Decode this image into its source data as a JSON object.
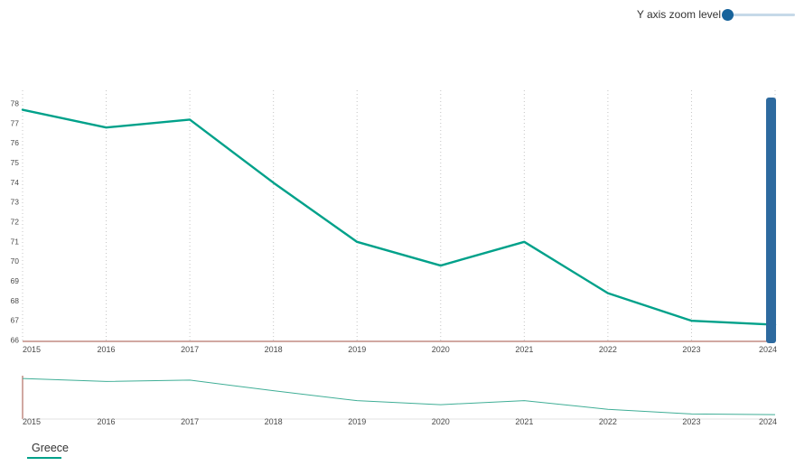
{
  "controls": {
    "y_zoom_label": "Y axis zoom level"
  },
  "legend": {
    "items": [
      {
        "label": "Greece",
        "color": "#00a18a"
      }
    ]
  },
  "chart_data": {
    "type": "line",
    "title": "",
    "xlabel": "",
    "ylabel": "",
    "x": [
      2015,
      2016,
      2017,
      2018,
      2019,
      2020,
      2021,
      2022,
      2023,
      2024
    ],
    "series": [
      {
        "name": "Greece",
        "values": [
          77.7,
          76.8,
          77.2,
          74.0,
          71.0,
          69.8,
          71.0,
          68.4,
          67.0,
          66.8
        ]
      }
    ],
    "ylim": [
      66,
      78
    ],
    "yticks": [
      66,
      67,
      68,
      69,
      70,
      71,
      72,
      73,
      74,
      75,
      76,
      77,
      78
    ],
    "grid": "vertical-dotted",
    "legend_position": "bottom-left",
    "has_navigator": true,
    "colors": {
      "series": "#00a18a",
      "navigator_line": "#3fae96",
      "grid": "#c4c4c4",
      "axis_line": "#a35244",
      "tick_label": "#4a4a4a",
      "scrollbar_thumb": "#2d6a9f",
      "slider_knob": "#17639b",
      "slider_track": "#c6d9e8"
    }
  }
}
